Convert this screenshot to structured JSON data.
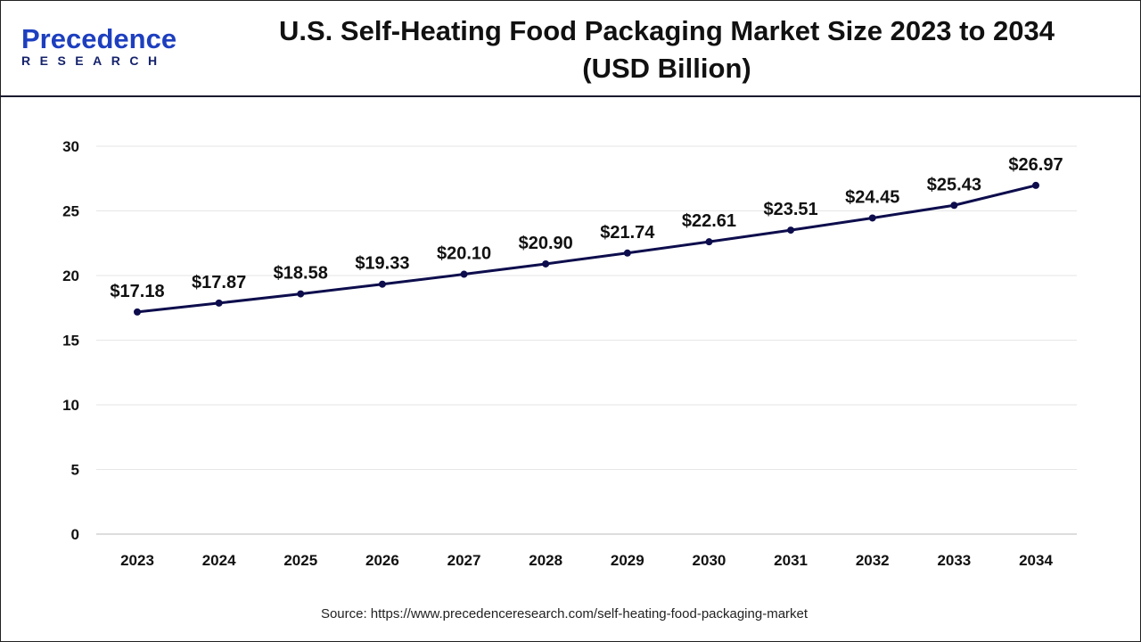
{
  "brand": {
    "name": "Precedence",
    "sub": "RESEARCH"
  },
  "title_line1": "U.S. Self-Heating Food Packaging Market Size 2023 to 2034",
  "title_line2": "(USD Billion)",
  "source": "Source: https://www.precedenceresearch.com/self-heating-food-packaging-market",
  "colors": {
    "line": "#0d0d4d",
    "grid": "#e6e6e6"
  },
  "chart_data": {
    "type": "line",
    "title": "U.S. Self-Heating Food Packaging Market Size 2023 to 2034 (USD Billion)",
    "xlabel": "",
    "ylabel": "",
    "categories": [
      "2023",
      "2024",
      "2025",
      "2026",
      "2027",
      "2028",
      "2029",
      "2030",
      "2031",
      "2032",
      "2033",
      "2034"
    ],
    "values": [
      17.18,
      17.87,
      18.58,
      19.33,
      20.1,
      20.9,
      21.74,
      22.61,
      23.51,
      24.45,
      25.43,
      26.97
    ],
    "labels": [
      "$17.18",
      "$17.87",
      "$18.58",
      "$19.33",
      "$20.10",
      "$20.90",
      "$21.74",
      "$22.61",
      "$23.51",
      "$24.45",
      "$25.43",
      "$26.97"
    ],
    "yticks": [
      0,
      5,
      10,
      15,
      20,
      25,
      30
    ],
    "ylim": [
      0,
      30
    ],
    "grid": true
  }
}
